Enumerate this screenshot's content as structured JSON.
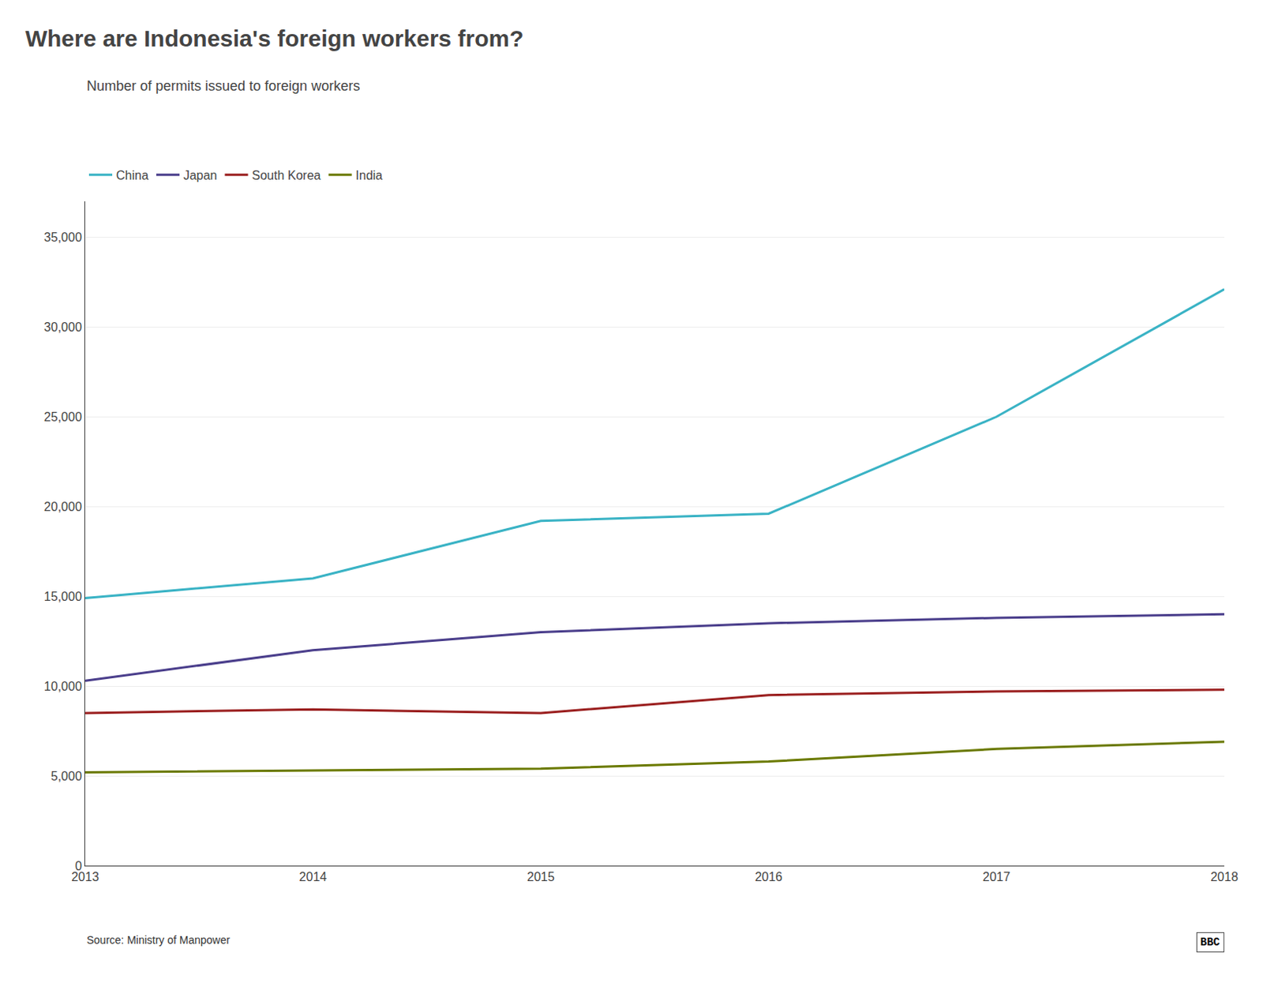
{
  "chart_data": {
    "type": "line",
    "title": "Where are Indonesia's foreign workers from?",
    "subtitle": "Number of permits issued to foreign workers",
    "source": "Source: Ministry of Manpower",
    "annotations": [
      "BBC"
    ],
    "x": [
      2013,
      2014,
      2015,
      2016,
      2017,
      2018
    ],
    "series": [
      {
        "name": "China",
        "color": "#3ab3c5",
        "values": [
          14900,
          16000,
          19200,
          19600,
          25000,
          32100
        ]
      },
      {
        "name": "Japan",
        "color": "#4b3f8c",
        "values": [
          10300,
          12000,
          13000,
          13500,
          13800,
          14000
        ]
      },
      {
        "name": "South Korea",
        "color": "#9b2020",
        "values": [
          8500,
          8700,
          8500,
          9500,
          9700,
          9800
        ]
      },
      {
        "name": "India",
        "color": "#6b7a00",
        "values": [
          5200,
          5300,
          5400,
          5800,
          6500,
          6900
        ]
      }
    ],
    "xlim": [
      2013,
      2018
    ],
    "xticks": [
      2013,
      2014,
      2015,
      2016,
      2017,
      2018
    ],
    "ylim": [
      0,
      37000
    ],
    "yticks": [
      0,
      {
        "value": 5000,
        "label": "5,000"
      },
      {
        "value": 10000,
        "label": "10,000"
      },
      {
        "value": 15000,
        "label": "15,000"
      },
      {
        "value": 20000,
        "label": "20,000"
      },
      {
        "value": 25000,
        "label": "25,000"
      },
      {
        "value": 30000,
        "label": "30,000"
      },
      {
        "value": 35000,
        "label": "35,000"
      }
    ],
    "grid": "y",
    "legend": "top"
  }
}
